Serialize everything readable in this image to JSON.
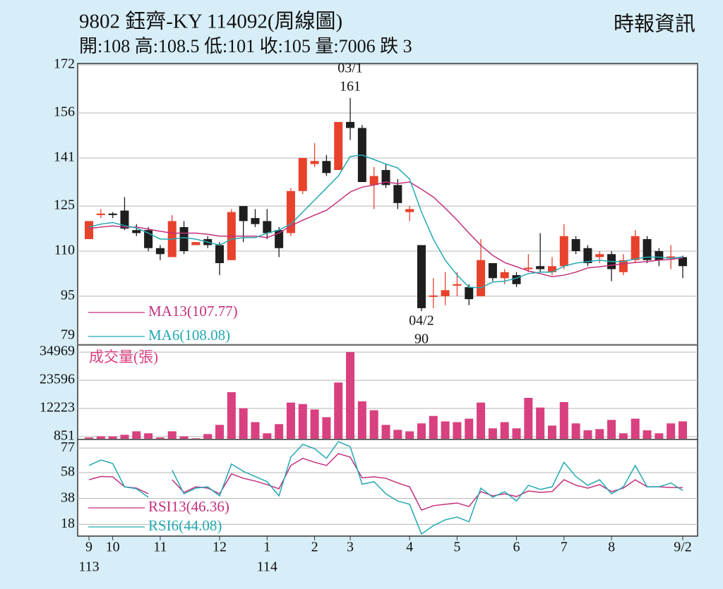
{
  "header": {
    "title": "9802  鈺齊-KY 114092(周線圖)",
    "source": "時報資訊",
    "summary": "開:108 高:108.5 低:101 收:105 量:7006 跌 3"
  },
  "chart_data": [
    {
      "type": "candlestick",
      "categories": [
        "9",
        null,
        "10",
        null,
        null,
        null,
        "11",
        null,
        null,
        null,
        null,
        "12",
        null,
        null,
        null,
        "1",
        null,
        null,
        null,
        "2",
        null,
        null,
        "3",
        null,
        null,
        null,
        null,
        "4",
        null,
        null,
        null,
        "5",
        null,
        null,
        null,
        null,
        "6",
        null,
        null,
        null,
        "7",
        null,
        null,
        null,
        "8",
        null,
        null,
        null,
        null,
        null,
        "9/2"
      ],
      "open": [
        114,
        122,
        122.5,
        123.5,
        117,
        117,
        111,
        108,
        118,
        112,
        114,
        112,
        107,
        125,
        121,
        120,
        117,
        116,
        130,
        139,
        140,
        137,
        153,
        151,
        132,
        137,
        132,
        123,
        112,
        95,
        95,
        98.5,
        98,
        95,
        106,
        101,
        102,
        104,
        105,
        103,
        105,
        114,
        111,
        108,
        109,
        103,
        107,
        114,
        110,
        108,
        108
      ],
      "high": [
        120,
        124,
        123,
        128,
        119,
        118,
        112,
        122,
        120,
        113,
        115,
        113,
        124,
        125,
        124,
        124,
        118,
        131,
        141,
        146,
        142,
        153,
        161,
        152,
        138,
        139,
        134,
        125,
        112,
        101,
        103,
        103,
        99,
        114,
        106,
        104,
        103,
        109,
        116,
        108,
        119,
        115,
        112,
        110,
        110,
        109,
        117,
        115,
        111,
        112,
        108.5
      ],
      "low": [
        114,
        121,
        121,
        117,
        115,
        110,
        107,
        108,
        109,
        112,
        111,
        102,
        107,
        113,
        118,
        114,
        108,
        115,
        129,
        138,
        135,
        137,
        147,
        133,
        124,
        131,
        124,
        120,
        90,
        91,
        92,
        95,
        92,
        95,
        100,
        99,
        98,
        103,
        103,
        102,
        104,
        109,
        105,
        106,
        100,
        102,
        106,
        106,
        105,
        104,
        101
      ],
      "close": [
        120,
        122.5,
        122,
        117.5,
        116,
        111,
        109,
        120,
        110,
        113,
        112,
        106,
        123,
        120,
        119,
        116,
        111,
        130,
        141,
        140,
        136,
        153,
        151,
        133,
        135,
        132,
        126,
        124,
        91,
        95,
        97,
        99,
        94,
        107,
        101,
        103,
        99,
        104.5,
        104,
        105,
        115,
        110,
        106,
        109,
        104,
        107,
        115,
        107,
        107,
        108,
        105
      ],
      "up_color": "#e8412c",
      "down_color": "#1e1e1e",
      "ylim": [
        79,
        172
      ],
      "yticks": [
        79,
        95,
        110,
        125,
        141,
        156,
        172
      ],
      "grid": true,
      "series": [
        {
          "name": "MA13(107.77)",
          "color": "#c3307c",
          "values": [
            117.5,
            118,
            118.4,
            118,
            118,
            117.3,
            116.6,
            116,
            116,
            116,
            115.6,
            115,
            115,
            115,
            115,
            114.5,
            116,
            118.4,
            120.3,
            122,
            123.6,
            126.6,
            129.7,
            131.3,
            132,
            133,
            132.5,
            133,
            130.6,
            128,
            124.3,
            120.3,
            116,
            111.9,
            108.6,
            106.2,
            104.8,
            103.4,
            102.5,
            101.5,
            102,
            103,
            104.4,
            104.8,
            105.3,
            105.8,
            106.2,
            106.5,
            107,
            107.2,
            107.77
          ]
        },
        {
          "name": "MA6(108.08)",
          "color": "#22a9b3",
          "values": [
            118,
            119,
            119.5,
            118.5,
            117.7,
            116,
            114,
            114,
            114.5,
            114,
            113,
            112,
            114,
            114.5,
            114.5,
            116,
            117,
            119,
            123,
            127,
            131,
            135,
            141.5,
            142,
            140.5,
            139,
            137.7,
            134,
            123,
            114,
            107,
            102,
            98,
            97.8,
            99.7,
            100,
            101,
            102.5,
            103,
            103,
            105,
            106,
            106.5,
            107,
            106.5,
            106.5,
            107.4,
            108,
            108,
            107.6,
            108.08
          ]
        }
      ],
      "peak": {
        "label": "03/1",
        "value": 161
      },
      "trough": {
        "label": "04/2",
        "value": 90
      },
      "years": [
        {
          "label": "113",
          "at": "9"
        },
        {
          "label": "114",
          "at": "1"
        }
      ]
    },
    {
      "type": "bar",
      "title": "成交量(張)",
      "color": "#d8407f",
      "values": [
        500,
        1000,
        1000,
        1600,
        3000,
        2200,
        500,
        3000,
        1000,
        200,
        1900,
        5600,
        18800,
        12300,
        6700,
        2200,
        5900,
        14600,
        14000,
        11800,
        8700,
        22700,
        34969,
        15100,
        11500,
        5600,
        3600,
        3000,
        6200,
        9200,
        7000,
        6700,
        8100,
        14600,
        4200,
        6700,
        4200,
        16500,
        12600,
        5300,
        14800,
        6200,
        3400,
        3900,
        7600,
        2200,
        8100,
        3400,
        2200,
        6200,
        7006
      ],
      "ylim": [
        0,
        37000
      ],
      "yticks": [
        851,
        12223,
        23596,
        34969
      ],
      "grid": true
    },
    {
      "type": "line",
      "ylim": [
        10,
        82
      ],
      "yticks": [
        18,
        38,
        58,
        77
      ],
      "grid": true,
      "series": [
        {
          "name": "RSI13(46.36)",
          "color": "#c3307c",
          "values": [
            52.5,
            55,
            54.7,
            47,
            46,
            41.6,
            null,
            52.5,
            42.7,
            47,
            46,
            41.6,
            57,
            53.6,
            51.5,
            48.7,
            45.5,
            63.5,
            69,
            66,
            63.5,
            72.7,
            70,
            54,
            54.7,
            53.6,
            50,
            47,
            29,
            32.4,
            33.5,
            34.5,
            31.8,
            43.3,
            40,
            41.6,
            39.5,
            43.8,
            42.7,
            43.3,
            52.5,
            48.2,
            46,
            48.7,
            43.3,
            46,
            52.5,
            47,
            47,
            46.5,
            46.36
          ]
        },
        {
          "name": "RSI6(44.08)",
          "color": "#22a9b3",
          "values": [
            63.5,
            67.8,
            65,
            47,
            45.5,
            38.9,
            null,
            60,
            41.6,
            46,
            47,
            40,
            64.6,
            59,
            55,
            51,
            40,
            70,
            79.8,
            76.5,
            69,
            82,
            78,
            49,
            51,
            41.6,
            36,
            33.5,
            10.5,
            17,
            21.5,
            23.6,
            20,
            46,
            38.9,
            43.3,
            36,
            48.2,
            45,
            47,
            66,
            55,
            48.2,
            52.5,
            41.6,
            47,
            63.5,
            47,
            47,
            50,
            44.08
          ]
        }
      ]
    }
  ]
}
